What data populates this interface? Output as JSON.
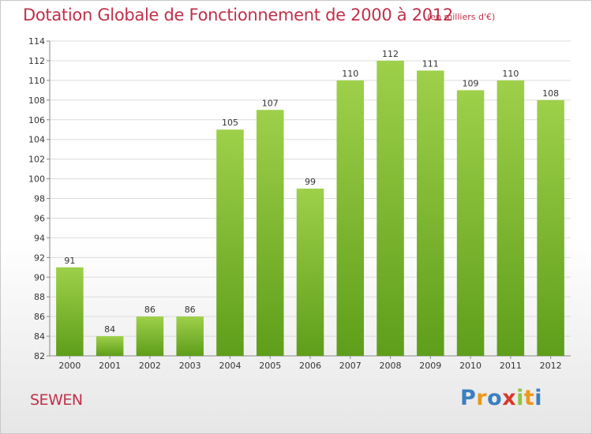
{
  "chart_data": {
    "type": "bar",
    "title": "Dotation Globale de Fonctionnement de 2000 à 2012",
    "subtitle": "(en milliers d'€)",
    "categories": [
      "2000",
      "2001",
      "2002",
      "2003",
      "2004",
      "2005",
      "2006",
      "2007",
      "2008",
      "2009",
      "2010",
      "2011",
      "2012"
    ],
    "values": [
      91,
      84,
      86,
      86,
      105,
      107,
      99,
      110,
      112,
      111,
      109,
      110,
      108
    ],
    "ylim": [
      82,
      114
    ],
    "yticks": [
      82,
      84,
      86,
      88,
      90,
      92,
      94,
      96,
      98,
      100,
      102,
      104,
      106,
      108,
      110,
      112,
      114
    ],
    "grid": true,
    "bar_color": "#8cc63f",
    "bar_color_dark": "#5e9e1a"
  },
  "commune": "SEWEN",
  "logo": {
    "letters": [
      "P",
      "r",
      "o",
      "x",
      "i",
      "t",
      "i"
    ],
    "colors": [
      "#3a7fc1",
      "#e89a1a",
      "#3a7fc1",
      "#d8392b",
      "#8cc63f",
      "#e89a1a",
      "#3a7fc1"
    ]
  }
}
